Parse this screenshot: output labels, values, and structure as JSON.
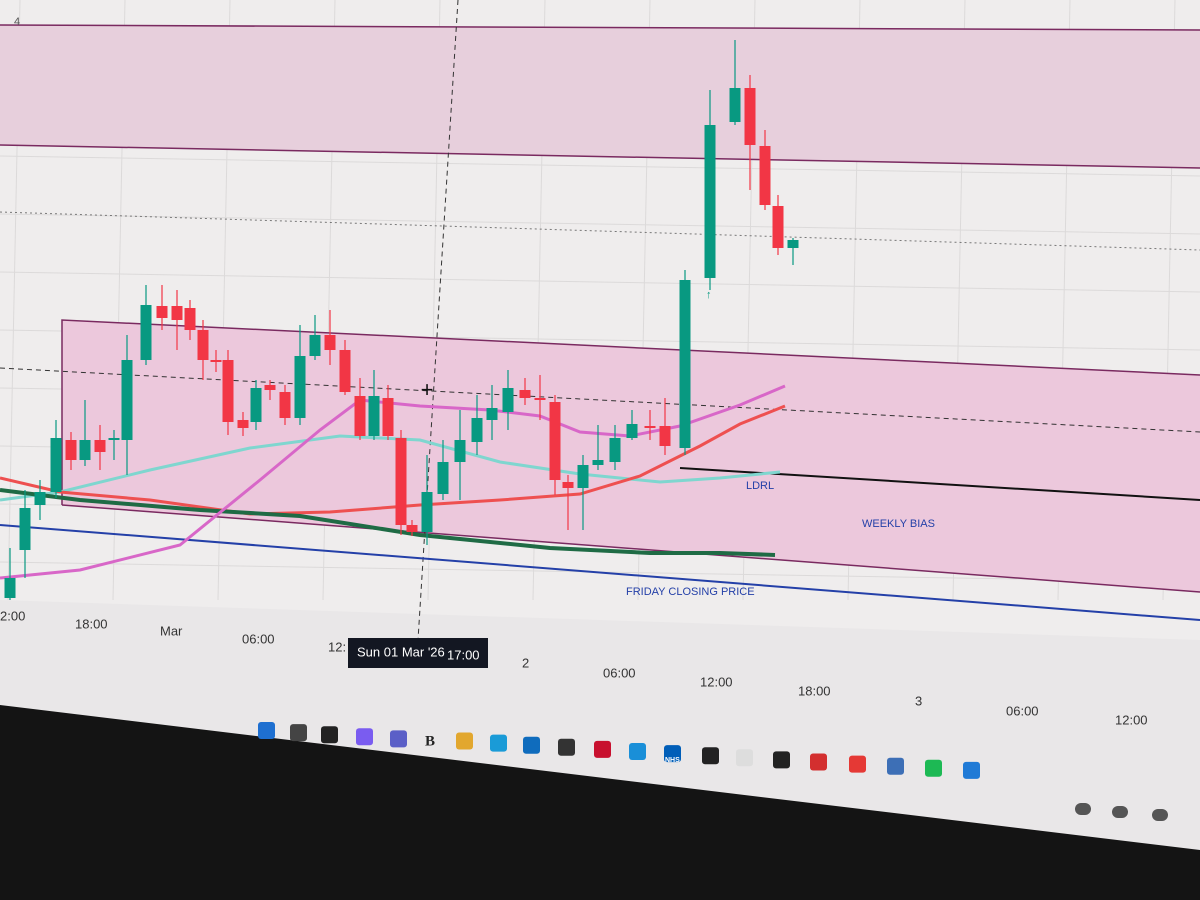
{
  "header": {
    "badge": "4"
  },
  "chart": {
    "time_axis": [
      "2:00",
      "18:00",
      "Mar",
      "06:00",
      "12:",
      "2",
      "06:00",
      "12:00",
      "18:00",
      "3",
      "06:00",
      "12:00"
    ],
    "tooltip": {
      "date": "Sun 01 Mar '26",
      "time": "17:00"
    },
    "annotations": {
      "ldrl": "LDRL",
      "weekly_bias": "WEEKLY BIAS",
      "friday_close": "FRIDAY CLOSING PRICE"
    }
  },
  "taskbar": {
    "letter_icon": "B",
    "nhs_icon": "NHS"
  }
}
